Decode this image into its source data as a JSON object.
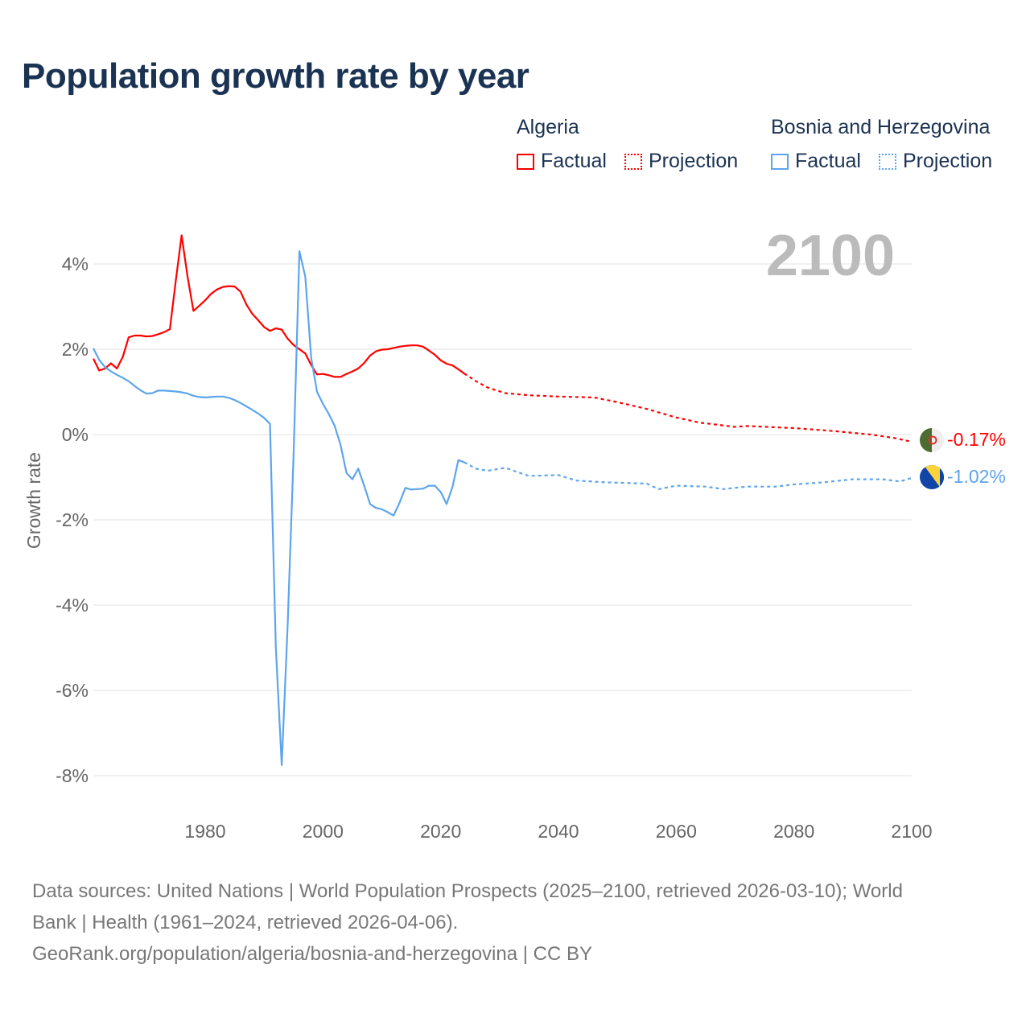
{
  "title": "Population growth rate by year",
  "legend": {
    "groups": [
      {
        "name": "Algeria",
        "color": "#ff0000",
        "items": [
          "Factual",
          "Projection"
        ]
      },
      {
        "name": "Bosnia and Herzegovina",
        "color": "#5da5ec",
        "items": [
          "Factual",
          "Projection"
        ]
      }
    ]
  },
  "year_label": "2100",
  "end_labels": {
    "algeria": "-0.17%",
    "bosnia": "-1.02%"
  },
  "footer": {
    "line1": "Data sources: United Nations | World Population Prospects (2025–2100, retrieved 2026-03-10); World",
    "line2": "Bank | Health (1961–2024, retrieved 2026-04-06).",
    "line3": "GeoRank.org/population/algeria/bosnia-and-herzegovina | CC BY"
  },
  "chart_data": {
    "type": "line",
    "title": "Population growth rate by year",
    "xlabel": "",
    "ylabel": "Growth rate",
    "xlim": [
      1961,
      2100
    ],
    "ylim": [
      -8.8,
      4.9
    ],
    "xticks": [
      1980,
      2000,
      2020,
      2040,
      2060,
      2080,
      2100
    ],
    "xtick_labels": [
      "1980",
      "2000",
      "2020",
      "2040",
      "2060",
      "2080",
      "2100"
    ],
    "yticks": [
      4,
      2,
      0,
      -2,
      -4,
      -6,
      -8
    ],
    "ytick_labels": [
      "4%",
      "2%",
      "0%",
      "-2%",
      "-4%",
      "-6%",
      "-8%"
    ],
    "grid": true,
    "legend_position": "top-right",
    "series": [
      {
        "name": "Algeria Factual",
        "color": "#ff0000",
        "dashed": false,
        "x": [
          1961,
          1962,
          1963,
          1964,
          1965,
          1966,
          1967,
          1968,
          1969,
          1970,
          1971,
          1972,
          1973,
          1974,
          1975,
          1976,
          1977,
          1978,
          1979,
          1980,
          1981,
          1982,
          1983,
          1984,
          1985,
          1986,
          1987,
          1988,
          1989,
          1990,
          1991,
          1992,
          1993,
          1994,
          1995,
          1996,
          1997,
          1998,
          1999,
          2000,
          2001,
          2002,
          2003,
          2004,
          2005,
          2006,
          2007,
          2008,
          2009,
          2010,
          2011,
          2012,
          2013,
          2014,
          2015,
          2016,
          2017,
          2018,
          2019,
          2020,
          2021,
          2022,
          2023,
          2024
        ],
        "y": [
          1.78,
          1.5,
          1.55,
          1.67,
          1.55,
          1.82,
          2.28,
          2.32,
          2.32,
          2.3,
          2.31,
          2.35,
          2.4,
          2.47,
          3.6,
          4.67,
          3.7,
          2.9,
          3.02,
          3.15,
          3.3,
          3.4,
          3.46,
          3.48,
          3.47,
          3.35,
          3.05,
          2.83,
          2.68,
          2.52,
          2.43,
          2.49,
          2.46,
          2.25,
          2.1,
          2.0,
          1.9,
          1.63,
          1.41,
          1.42,
          1.39,
          1.35,
          1.35,
          1.42,
          1.48,
          1.55,
          1.68,
          1.85,
          1.95,
          1.99,
          2.0,
          2.03,
          2.06,
          2.08,
          2.09,
          2.09,
          2.06,
          1.97,
          1.87,
          1.74,
          1.66,
          1.62,
          1.53,
          1.43
        ]
      },
      {
        "name": "Algeria Projection",
        "color": "#ff0000",
        "dashed": true,
        "x": [
          2024,
          2026,
          2028,
          2031,
          2035,
          2040,
          2046,
          2050,
          2055,
          2060,
          2064,
          2070,
          2072,
          2080,
          2087,
          2093,
          2097,
          2100
        ],
        "y": [
          1.43,
          1.25,
          1.1,
          0.97,
          0.92,
          0.89,
          0.87,
          0.76,
          0.6,
          0.4,
          0.28,
          0.18,
          0.2,
          0.15,
          0.08,
          0.0,
          -0.08,
          -0.17
        ]
      },
      {
        "name": "Bosnia and Herzegovina Factual",
        "color": "#5da5ec",
        "dashed": false,
        "x": [
          1961,
          1962,
          1963,
          1964,
          1965,
          1966,
          1967,
          1968,
          1969,
          1970,
          1971,
          1972,
          1973,
          1974,
          1975,
          1976,
          1977,
          1978,
          1979,
          1980,
          1981,
          1982,
          1983,
          1984,
          1985,
          1986,
          1987,
          1988,
          1989,
          1990,
          1991,
          1992,
          1993,
          1994,
          1995,
          1996,
          1997,
          1998,
          1999,
          2000,
          2001,
          2002,
          2003,
          2004,
          2005,
          2006,
          2007,
          2008,
          2009,
          2010,
          2011,
          2012,
          2013,
          2014,
          2015,
          2016,
          2017,
          2018,
          2019,
          2020,
          2021,
          2022,
          2023,
          2024
        ],
        "y": [
          2.02,
          1.75,
          1.58,
          1.48,
          1.4,
          1.33,
          1.25,
          1.14,
          1.04,
          0.96,
          0.97,
          1.03,
          1.03,
          1.02,
          1.01,
          0.99,
          0.96,
          0.91,
          0.88,
          0.87,
          0.88,
          0.89,
          0.89,
          0.86,
          0.81,
          0.74,
          0.66,
          0.58,
          0.49,
          0.39,
          0.25,
          -5.0,
          -7.75,
          -4.5,
          -0.5,
          4.3,
          3.7,
          1.8,
          1.0,
          0.72,
          0.48,
          0.2,
          -0.25,
          -0.9,
          -1.05,
          -0.8,
          -1.2,
          -1.63,
          -1.72,
          -1.75,
          -1.82,
          -1.9,
          -1.6,
          -1.25,
          -1.29,
          -1.28,
          -1.27,
          -1.2,
          -1.2,
          -1.35,
          -1.63,
          -1.23,
          -0.6,
          -0.65
        ]
      },
      {
        "name": "Bosnia and Herzegovina Projection",
        "color": "#5da5ec",
        "dashed": true,
        "x": [
          2024,
          2026,
          2028,
          2031,
          2033,
          2035,
          2040,
          2043,
          2048,
          2055,
          2057,
          2060,
          2065,
          2068,
          2072,
          2077,
          2080,
          2085,
          2090,
          2095,
          2098,
          2100
        ],
        "y": [
          -0.65,
          -0.8,
          -0.85,
          -0.78,
          -0.88,
          -0.97,
          -0.95,
          -1.08,
          -1.12,
          -1.15,
          -1.28,
          -1.2,
          -1.22,
          -1.28,
          -1.22,
          -1.22,
          -1.17,
          -1.12,
          -1.05,
          -1.05,
          -1.1,
          -1.02
        ]
      }
    ]
  }
}
